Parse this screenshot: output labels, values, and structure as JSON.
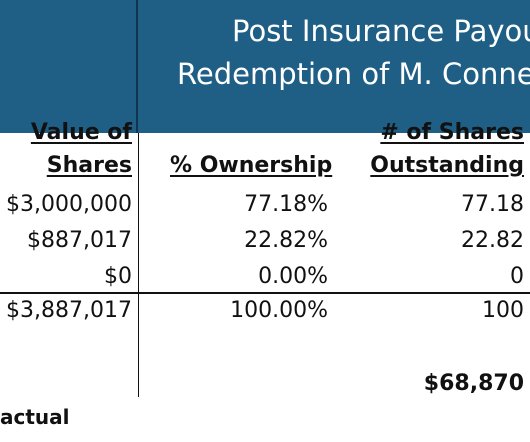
{
  "header": {
    "line1": "Post Insurance Payou",
    "line2": "Redemption of M. Conne"
  },
  "columns": {
    "value": [
      "Value of",
      "Shares"
    ],
    "ownership": "% Ownership",
    "shares_out": [
      "# of Shares",
      "Outstanding"
    ]
  },
  "rows": [
    {
      "value": "$3,000,000",
      "ownership": "77.18%",
      "shares": "77.18"
    },
    {
      "value": "$887,017",
      "ownership": "22.82%",
      "shares": "22.82"
    },
    {
      "value": "$0",
      "ownership": "0.00%",
      "shares": "0"
    }
  ],
  "totals": {
    "value": "$3,887,017",
    "ownership": "100.00%",
    "shares": "100"
  },
  "bottom_value": "$68,870",
  "footer_text": "actual"
}
